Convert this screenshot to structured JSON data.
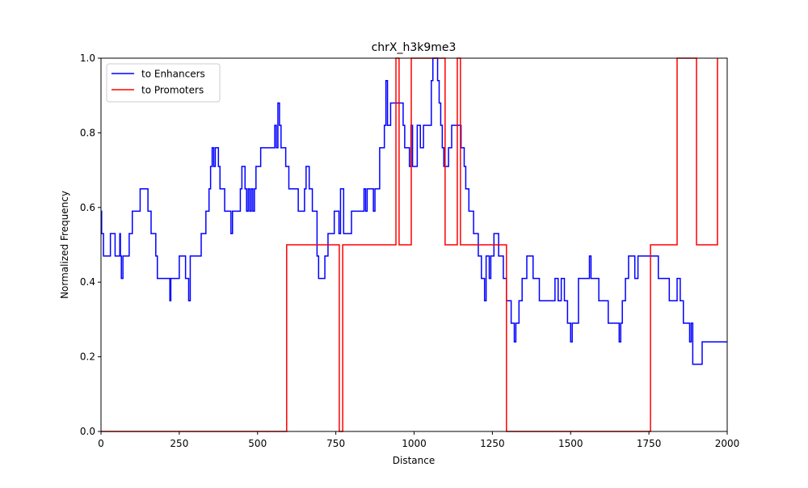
{
  "chart_data": {
    "type": "line",
    "drawstyle": "steps-post",
    "title": "chrX_h3k9me3",
    "x_label": "Distance",
    "y_label": "Normalized Frequency",
    "xlim": [
      0,
      2000
    ],
    "ylim": [
      0,
      1
    ],
    "xticks": [
      0,
      250,
      500,
      750,
      1000,
      1250,
      1500,
      1750,
      2000
    ],
    "yticks": [
      {
        "value": 0,
        "label": "0.0"
      },
      0.2,
      0.4,
      0.6,
      0.8,
      {
        "value": 1,
        "label": "1.0"
      }
    ],
    "legend": "upper left",
    "series": [
      {
        "name": "to Enhancers",
        "color": "#0000ff",
        "x": [
          0,
          2,
          8,
          30,
          45,
          60,
          62,
          65,
          70,
          90,
          100,
          125,
          150,
          160,
          175,
          180,
          220,
          223,
          250,
          270,
          280,
          285,
          320,
          335,
          345,
          350,
          355,
          360,
          365,
          375,
          380,
          395,
          415,
          420,
          445,
          450,
          460,
          465,
          470,
          475,
          480,
          485,
          490,
          495,
          510,
          555,
          560,
          565,
          570,
          575,
          590,
          600,
          630,
          650,
          655,
          665,
          675,
          690,
          695,
          715,
          725,
          745,
          760,
          765,
          775,
          800,
          840,
          845,
          850,
          870,
          875,
          890,
          905,
          910,
          915,
          925,
          965,
          970,
          985,
          990,
          995,
          1010,
          1020,
          1030,
          1055,
          1060,
          1075,
          1080,
          1085,
          1090,
          1095,
          1110,
          1120,
          1150,
          1160,
          1165,
          1175,
          1190,
          1205,
          1215,
          1225,
          1230,
          1240,
          1245,
          1255,
          1270,
          1285,
          1295,
          1310,
          1320,
          1325,
          1335,
          1345,
          1360,
          1380,
          1400,
          1450,
          1460,
          1470,
          1480,
          1490,
          1500,
          1505,
          1525,
          1560,
          1565,
          1590,
          1620,
          1655,
          1660,
          1665,
          1675,
          1685,
          1705,
          1715,
          1780,
          1815,
          1840,
          1850,
          1860,
          1880,
          1885,
          1890,
          1920,
          2000
        ],
        "values": [
          0.59,
          0.53,
          0.47,
          0.53,
          0.47,
          0.53,
          0.47,
          0.41,
          0.47,
          0.53,
          0.59,
          0.65,
          0.59,
          0.53,
          0.47,
          0.41,
          0.35,
          0.41,
          0.47,
          0.41,
          0.35,
          0.47,
          0.53,
          0.59,
          0.65,
          0.71,
          0.76,
          0.71,
          0.76,
          0.71,
          0.65,
          0.59,
          0.53,
          0.59,
          0.65,
          0.71,
          0.65,
          0.59,
          0.65,
          0.59,
          0.65,
          0.59,
          0.65,
          0.71,
          0.76,
          0.82,
          0.76,
          0.88,
          0.82,
          0.76,
          0.71,
          0.65,
          0.59,
          0.65,
          0.71,
          0.65,
          0.59,
          0.47,
          0.41,
          0.47,
          0.53,
          0.59,
          0.53,
          0.65,
          0.53,
          0.59,
          0.65,
          0.59,
          0.65,
          0.59,
          0.65,
          0.76,
          0.82,
          0.94,
          0.82,
          0.88,
          0.82,
          0.76,
          0.71,
          0.82,
          0.71,
          0.82,
          0.76,
          0.82,
          0.94,
          1.0,
          0.94,
          0.88,
          0.82,
          0.76,
          0.71,
          0.76,
          0.82,
          0.76,
          0.71,
          0.65,
          0.59,
          0.53,
          0.47,
          0.41,
          0.35,
          0.47,
          0.41,
          0.47,
          0.53,
          0.47,
          0.41,
          0.35,
          0.29,
          0.24,
          0.29,
          0.35,
          0.41,
          0.47,
          0.41,
          0.35,
          0.41,
          0.35,
          0.41,
          0.35,
          0.29,
          0.24,
          0.29,
          0.41,
          0.47,
          0.41,
          0.35,
          0.29,
          0.24,
          0.29,
          0.35,
          0.41,
          0.47,
          0.41,
          0.47,
          0.41,
          0.35,
          0.41,
          0.35,
          0.29,
          0.24,
          0.29,
          0.18,
          0.24,
          0.24
        ]
      },
      {
        "name": "to Promoters",
        "color": "#ff0000",
        "x": [
          0,
          593,
          761,
          772,
          942,
          952,
          991,
          1099,
          1138,
          1148,
          1295,
          1755,
          1840,
          1902,
          1969
        ],
        "values": [
          0,
          0.5,
          0,
          0.5,
          1,
          0.5,
          1,
          0.5,
          1,
          0.5,
          0,
          0.5,
          1,
          0.5,
          1
        ]
      }
    ]
  }
}
